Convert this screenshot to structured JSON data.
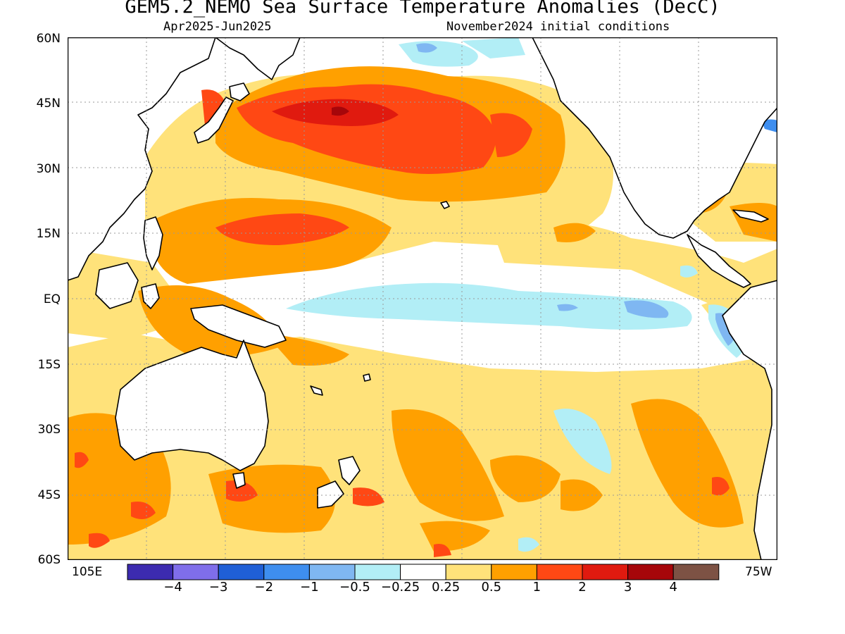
{
  "header": {
    "title": "GEM5.2_NEMO Sea Surface Temperature Anomalies (DecC)",
    "subtitle_left": "Apr2025-Jun2025",
    "subtitle_right": "November2024 initial conditions"
  },
  "axes": {
    "lat_labels": [
      "60N",
      "45N",
      "30N",
      "15N",
      "EQ",
      "15S",
      "30S",
      "45S",
      "60S"
    ],
    "lon_left": "105E",
    "lon_right": "75W"
  },
  "legend": {
    "labels": [
      "-4",
      "-3",
      "-2",
      "-1",
      "-0.5",
      "-0.25",
      "0.25",
      "0.5",
      "1",
      "2",
      "3",
      "4"
    ],
    "colors": [
      "#3c2bb0",
      "#7f6eea",
      "#1f5fd6",
      "#3e8eef",
      "#7fb7f2",
      "#b2eef6",
      "#ffffff",
      "#ffe27a",
      "#ffa000",
      "#ff4814",
      "#e01a0f",
      "#a6060a",
      "#7d5244"
    ]
  },
  "map": {
    "ocean_color": "#ffffff",
    "land_color": "#ffffff",
    "coast_color": "#000000",
    "grid_color": "#999999"
  }
}
